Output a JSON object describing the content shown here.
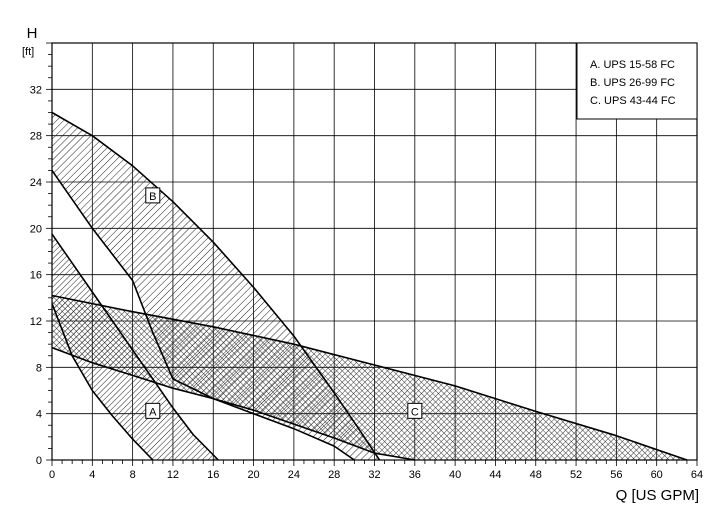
{
  "chart_data": {
    "type": "area",
    "title": "",
    "y_axis": {
      "label": "H",
      "unit": "[ft]",
      "min": 0,
      "max": 36,
      "major_step": 4,
      "labeled_ticks": [
        0,
        4,
        8,
        12,
        16,
        20,
        24,
        28,
        32
      ]
    },
    "x_axis": {
      "label": "Q [US GPM]",
      "min": 0,
      "max": 64,
      "major_step": 4,
      "labeled_ticks": [
        0,
        4,
        8,
        12,
        16,
        20,
        24,
        28,
        32,
        36,
        40,
        44,
        48,
        52,
        56,
        60,
        64
      ]
    },
    "grid": true,
    "legend": {
      "placement": "top-right",
      "entries": [
        "A. UPS 15-58 FC",
        "B. UPS 26-99 FC",
        "C. UPS 43-44 FC"
      ]
    },
    "series": [
      {
        "label": "A",
        "pattern": "diagonal-hatch-dense",
        "label_at": {
          "x": 10,
          "y": 4.2
        },
        "upper_curve": [
          [
            0,
            19.5
          ],
          [
            2,
            17
          ],
          [
            4,
            14.5
          ],
          [
            6,
            12
          ],
          [
            8,
            9.5
          ],
          [
            10,
            7
          ],
          [
            12,
            4.5
          ],
          [
            14,
            2.2
          ],
          [
            16.5,
            0
          ]
        ],
        "lower_curve": [
          [
            0,
            13.5
          ],
          [
            2,
            9
          ],
          [
            4,
            6
          ],
          [
            6,
            3.8
          ],
          [
            8,
            1.8
          ],
          [
            10,
            0
          ]
        ]
      },
      {
        "label": "B",
        "pattern": "diagonal-hatch",
        "label_at": {
          "x": 10,
          "y": 22.8
        },
        "upper_curve": [
          [
            0,
            30
          ],
          [
            4,
            28
          ],
          [
            8,
            25.4
          ],
          [
            12,
            22.3
          ],
          [
            16,
            18.8
          ],
          [
            20,
            14.9
          ],
          [
            24,
            10.7
          ],
          [
            28,
            5.8
          ],
          [
            30.2,
            3
          ],
          [
            32.5,
            0
          ]
        ],
        "lower_curve": [
          [
            0,
            25
          ],
          [
            4,
            20
          ],
          [
            8,
            15.5
          ],
          [
            10,
            11
          ],
          [
            12,
            7
          ],
          [
            16,
            5.3
          ],
          [
            20,
            4
          ],
          [
            24,
            2.7
          ],
          [
            28,
            1.2
          ],
          [
            30,
            0
          ]
        ]
      },
      {
        "label": "C",
        "pattern": "cross-hatch",
        "label_at": {
          "x": 36,
          "y": 4.2
        },
        "upper_curve": [
          [
            0,
            14.2
          ],
          [
            8,
            12.8
          ],
          [
            16,
            11.5
          ],
          [
            24,
            10
          ],
          [
            32,
            8.2
          ],
          [
            40,
            6.4
          ],
          [
            48,
            4.2
          ],
          [
            56,
            2.1
          ],
          [
            63,
            0
          ]
        ],
        "lower_curve": [
          [
            0,
            9.7
          ],
          [
            4,
            8.4
          ],
          [
            8,
            7.3
          ],
          [
            12,
            6.2
          ],
          [
            16,
            5.3
          ],
          [
            20,
            4.3
          ],
          [
            24,
            3.1
          ],
          [
            28,
            1.9
          ],
          [
            32,
            0.6
          ],
          [
            36,
            0
          ]
        ]
      }
    ]
  }
}
